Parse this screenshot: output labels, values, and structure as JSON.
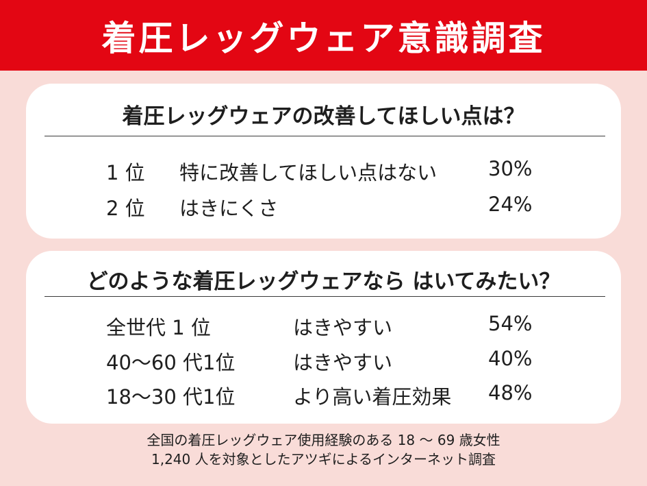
{
  "header": {
    "title": "着圧レッグウェア意識調査"
  },
  "section1": {
    "question": "着圧レッグウェアの改善してほしい点は？",
    "rows": [
      {
        "rank": "1 位",
        "item": "特に改善してほしい点はない",
        "percent": "30%"
      },
      {
        "rank": "2 位",
        "item": "はきにくさ",
        "percent": "24%"
      }
    ]
  },
  "section2": {
    "question": "どのような着圧レッグウェアなら はいてみたい？",
    "rows": [
      {
        "rank": "全世代 1 位",
        "item": "はきやすい",
        "percent": "54%"
      },
      {
        "rank": "40～60 代1位",
        "item": "はきやすい",
        "percent": "40%"
      },
      {
        "rank": "18～30 代1位",
        "item": "より高い着圧効果",
        "percent": "48%"
      }
    ]
  },
  "footer": {
    "line1": "全国の着圧レッグウェア使用経験のある 18 ～ 69 歳女性",
    "line2": "1,240 人を対象としたアツギによるインターネット調査"
  }
}
